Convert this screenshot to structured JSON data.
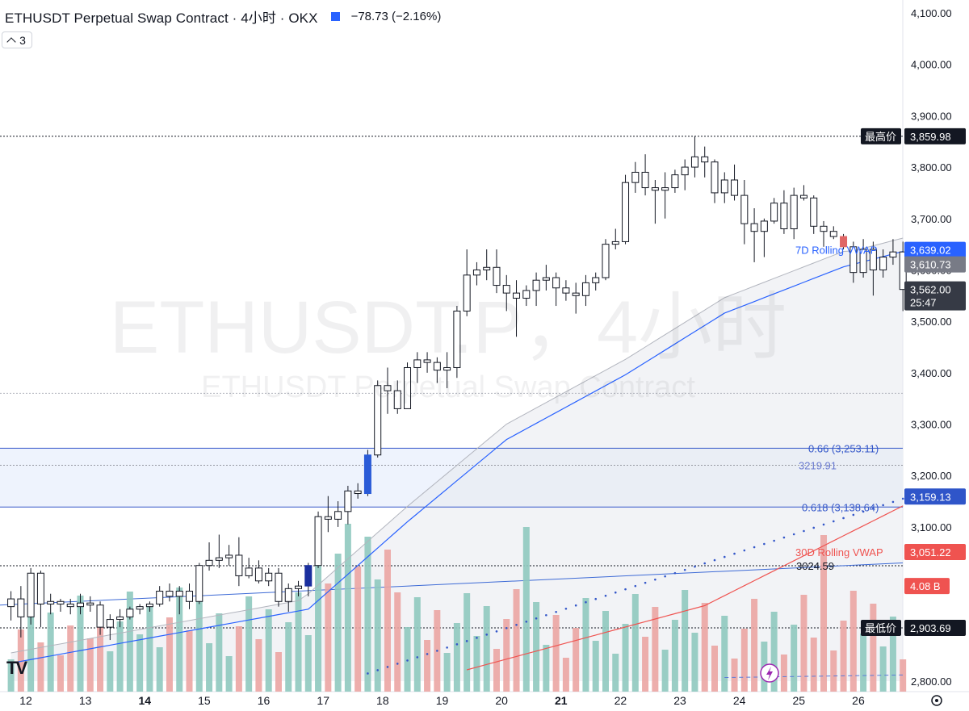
{
  "header": {
    "title": "ETHUSDT Perpetual Swap Contract · 4小时 · OKX",
    "change": "−78.73 (−2.16%)"
  },
  "indicator_count": "3",
  "watermark": {
    "line1": "ETHUSDT.P，4小时",
    "line2": "ETHUSDT Perpetual Swap Contract"
  },
  "colors": {
    "up_body": "#ffffff",
    "candle_outline": "#131722",
    "down_body_highlight": "#e06666",
    "blue_candle": "#2a5bd7",
    "navy_candle": "#1a2f9e",
    "vol_up": "#8fc9bf",
    "vol_down": "#eba5a3",
    "vwap7": "#2962ff",
    "vwap30": "#ef5350",
    "fib": "#3457c9"
  },
  "chart_data": {
    "type": "candlestick",
    "symbol": "ETHUSDT Perpetual Swap Contract",
    "interval": "4小时",
    "exchange": "OKX",
    "y_range": [
      2800,
      4100
    ],
    "y_ticks": [
      "2,800.00",
      "3,100.00",
      "3,200.00",
      "3,300.00",
      "3,400.00",
      "3,500.00",
      "3,600.00",
      "3,700.00",
      "3,800.00",
      "3,900.00",
      "4,000.00",
      "4,100.00"
    ],
    "y_tick_values": [
      2800,
      3100,
      3200,
      3300,
      3400,
      3500,
      3600,
      3700,
      3800,
      3900,
      4000,
      4100
    ],
    "x_labels": [
      {
        "label": "12",
        "day": 12
      },
      {
        "label": "13",
        "day": 13
      },
      {
        "label": "14",
        "day": 14,
        "bold": true
      },
      {
        "label": "15",
        "day": 15
      },
      {
        "label": "16",
        "day": 16
      },
      {
        "label": "17",
        "day": 17
      },
      {
        "label": "18",
        "day": 18
      },
      {
        "label": "19",
        "day": 19
      },
      {
        "label": "20",
        "day": 20
      },
      {
        "label": "21",
        "day": 21,
        "bold": true
      },
      {
        "label": "22",
        "day": 22
      },
      {
        "label": "23",
        "day": 23
      },
      {
        "label": "24",
        "day": 24
      },
      {
        "label": "25",
        "day": 25
      },
      {
        "label": "26",
        "day": 26
      }
    ],
    "candles": [
      [
        2945,
        2975,
        2918,
        2960,
        1
      ],
      [
        2960,
        2985,
        2885,
        2925,
        1
      ],
      [
        2925,
        3020,
        2910,
        3010,
        1
      ],
      [
        3010,
        3015,
        2905,
        2950,
        1
      ],
      [
        2950,
        2970,
        2930,
        2955,
        1
      ],
      [
        2955,
        2960,
        2935,
        2950,
        1
      ],
      [
        2950,
        2960,
        2930,
        2945,
        1
      ],
      [
        2945,
        2970,
        2930,
        2952,
        1
      ],
      [
        2952,
        2965,
        2935,
        2948,
        1
      ],
      [
        2948,
        2955,
        2890,
        2905,
        1
      ],
      [
        2905,
        2930,
        2880,
        2920,
        1
      ],
      [
        2920,
        2940,
        2905,
        2925,
        1
      ],
      [
        2925,
        2945,
        2920,
        2940,
        1
      ],
      [
        2940,
        2950,
        2930,
        2945,
        1
      ],
      [
        2945,
        2955,
        2935,
        2950,
        1
      ],
      [
        2950,
        2985,
        2945,
        2975,
        1
      ],
      [
        2975,
        2990,
        2955,
        2965,
        1
      ],
      [
        2965,
        2985,
        2930,
        2975,
        1
      ],
      [
        2975,
        2990,
        2940,
        2955,
        1
      ],
      [
        2955,
        3030,
        2950,
        3025,
        1
      ],
      [
        3025,
        3070,
        3015,
        3035,
        1
      ],
      [
        3035,
        3085,
        3020,
        3040,
        1
      ],
      [
        3040,
        3065,
        3025,
        3045,
        1
      ],
      [
        3045,
        3080,
        2985,
        3005,
        1
      ],
      [
        3005,
        3040,
        3000,
        3020,
        1
      ],
      [
        3020,
        3035,
        2990,
        2995,
        1
      ],
      [
        2995,
        3020,
        2985,
        3010,
        1
      ],
      [
        3010,
        3020,
        2945,
        2955,
        1
      ],
      [
        2955,
        2990,
        2935,
        2980,
        1
      ],
      [
        2980,
        2995,
        2965,
        2985,
        1
      ],
      [
        2985,
        3030,
        2965,
        3025,
        "navy"
      ],
      [
        3025,
        3130,
        3020,
        3120,
        1
      ],
      [
        3120,
        3160,
        3090,
        3115,
        1
      ],
      [
        3115,
        3150,
        3100,
        3130,
        1
      ],
      [
        3130,
        3180,
        3105,
        3170,
        1
      ],
      [
        3170,
        3185,
        3155,
        3165,
        1
      ],
      [
        3165,
        3250,
        3160,
        3240,
        "blue"
      ],
      [
        3240,
        3385,
        3235,
        3375,
        1
      ],
      [
        3375,
        3410,
        3320,
        3365,
        1
      ],
      [
        3365,
        3385,
        3320,
        3330,
        1
      ],
      [
        3330,
        3420,
        3330,
        3410,
        1
      ],
      [
        3410,
        3440,
        3380,
        3425,
        1
      ],
      [
        3425,
        3440,
        3400,
        3420,
        1
      ],
      [
        3420,
        3430,
        3380,
        3405,
        1
      ],
      [
        3405,
        3440,
        3370,
        3410,
        1
      ],
      [
        3410,
        3530,
        3390,
        3520,
        1
      ],
      [
        3520,
        3640,
        3510,
        3590,
        1
      ],
      [
        3590,
        3615,
        3570,
        3600,
        1
      ],
      [
        3600,
        3640,
        3580,
        3605,
        1
      ],
      [
        3605,
        3640,
        3555,
        3570,
        1
      ],
      [
        3570,
        3590,
        3520,
        3555,
        1
      ],
      [
        3555,
        3580,
        3470,
        3545,
        1
      ],
      [
        3545,
        3570,
        3530,
        3560,
        1
      ],
      [
        3560,
        3595,
        3530,
        3580,
        1
      ],
      [
        3580,
        3610,
        3560,
        3585,
        1
      ],
      [
        3585,
        3595,
        3530,
        3565,
        1
      ],
      [
        3565,
        3580,
        3540,
        3555,
        1
      ],
      [
        3555,
        3575,
        3515,
        3550,
        1
      ],
      [
        3550,
        3590,
        3530,
        3575,
        1
      ],
      [
        3575,
        3595,
        3560,
        3585,
        1
      ],
      [
        3585,
        3660,
        3580,
        3650,
        1
      ],
      [
        3650,
        3680,
        3640,
        3655,
        1
      ],
      [
        3655,
        3785,
        3650,
        3770,
        1
      ],
      [
        3770,
        3810,
        3750,
        3790,
        1
      ],
      [
        3790,
        3825,
        3745,
        3760,
        1
      ],
      [
        3760,
        3775,
        3690,
        3755,
        1
      ],
      [
        3755,
        3790,
        3700,
        3760,
        1
      ],
      [
        3760,
        3795,
        3750,
        3785,
        1
      ],
      [
        3785,
        3815,
        3755,
        3800,
        1
      ],
      [
        3800,
        3860,
        3780,
        3820,
        1
      ],
      [
        3820,
        3840,
        3780,
        3810,
        1
      ],
      [
        3810,
        3815,
        3730,
        3750,
        1
      ],
      [
        3750,
        3790,
        3730,
        3775,
        1
      ],
      [
        3775,
        3805,
        3735,
        3745,
        1
      ],
      [
        3745,
        3775,
        3650,
        3690,
        1
      ],
      [
        3690,
        3720,
        3615,
        3675,
        1
      ],
      [
        3675,
        3700,
        3625,
        3695,
        1
      ],
      [
        3695,
        3740,
        3690,
        3730,
        1
      ],
      [
        3730,
        3755,
        3670,
        3680,
        1
      ],
      [
        3680,
        3760,
        3660,
        3745,
        1
      ],
      [
        3745,
        3765,
        3735,
        3740,
        1
      ],
      [
        3740,
        3745,
        3670,
        3685,
        1
      ],
      [
        3685,
        3695,
        3645,
        3675,
        1
      ],
      [
        3675,
        3685,
        3660,
        3665,
        1
      ],
      [
        3665,
        3670,
        3640,
        3645,
        "downhl"
      ],
      [
        3645,
        3655,
        3575,
        3595,
        1
      ],
      [
        3595,
        3660,
        3585,
        3640,
        1
      ],
      [
        3640,
        3655,
        3550,
        3600,
        1
      ],
      [
        3600,
        3640,
        3585,
        3625,
        1
      ],
      [
        3625,
        3660,
        3610,
        3635,
        1
      ],
      [
        3635,
        3655,
        3520,
        3562,
        1
      ]
    ],
    "volume_max_note": "4.08 B",
    "vwap_7d_label": "7D Rolling VWAP",
    "vwap_7d_value": "3,639.02",
    "vwap_30d_label": "30D Rolling VWAP",
    "vwap_30d_value": "3,051.22",
    "fib_levels": [
      {
        "label": "0.66 (3,253.11)",
        "value": 3253.11
      },
      {
        "label": "0.618 (3,138.64)",
        "value": 3138.64
      }
    ],
    "levels": [
      {
        "label": "3219.91",
        "value": 3219.91
      },
      {
        "label": "3024.59",
        "value": 3024.59
      }
    ],
    "highest": {
      "label": "最高价",
      "value": 3859.98,
      "text": "3,859.98"
    },
    "lowest": {
      "label": "最低价",
      "value": 2903.69,
      "text": "2,903.69"
    },
    "current_price": "3,562.00",
    "countdown": "25:47",
    "grey_price": "3,610.73",
    "fib_tag_value": "3,159.13",
    "volume_tag": "4.08 B"
  }
}
